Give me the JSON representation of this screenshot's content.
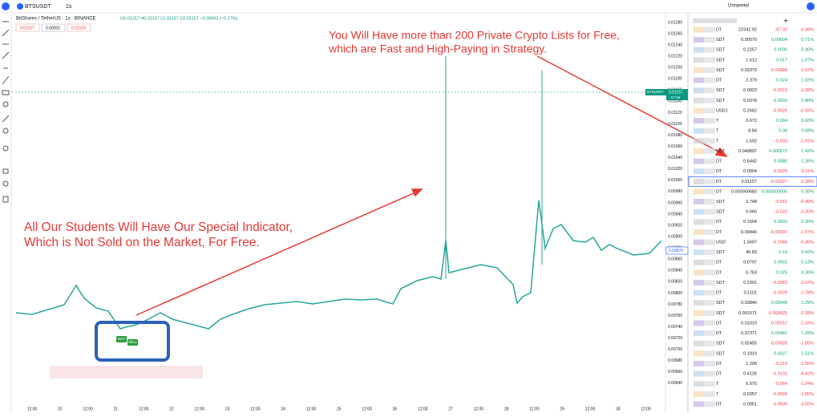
{
  "topbar": {
    "symbol": "BTSUSDT",
    "interval": "1s",
    "layout": "Unnamed"
  },
  "legend": {
    "title": "BitShares / TetherUS · 1s · BINANCE",
    "ohlc": "O0.01157 H0.01157 L0.01157 C0.01157 −0.00002 (−0.17%)",
    "boxes": [
      "0.01157",
      "0.00002",
      "0.01159"
    ]
  },
  "price_axis": [
    "0.01280",
    "0.01260",
    "0.01240",
    "0.01220",
    "0.01200",
    "0.01180",
    "0.01160",
    "0.01140",
    "0.01120",
    "0.01100",
    "0.01080",
    "0.01060",
    "0.01040",
    "0.01020",
    "0.01000",
    "0.00980",
    "0.00960",
    "0.00940",
    "0.00920",
    "0.00900",
    "0.00880",
    "0.00860",
    "0.00840",
    "0.00820",
    "0.00800",
    "0.00780",
    "0.00760",
    "0.00740",
    "0.00720",
    "0.00700",
    "0.00680",
    "0.00660",
    "0.00640"
  ],
  "price_tag": {
    "symbol": "BTSUSDT",
    "price": "0.01157",
    "timer": "57:46"
  },
  "cursor_tag": "0.00876",
  "time_axis": [
    "12:00",
    "20",
    "12:00",
    "21",
    "12:00",
    "22",
    "12:00",
    "23",
    "12:00",
    "24",
    "12:00",
    "25",
    "12:00",
    "26",
    "12:00",
    "27",
    "12:00",
    "28",
    "12:00",
    "29",
    "12:00",
    "30",
    "12:00"
  ],
  "signals": [
    "BUY",
    "SELL"
  ],
  "annotations": {
    "top": [
      "You Will Have more than 200 Private Crypto Lists for Free,",
      "which are Fast and High-Paying in Strategy."
    ],
    "left": [
      "All Our Students Will Have Our Special Indicator,",
      "Which is Not Sold on the Market, For Free."
    ]
  },
  "watchlist": {
    "rows": [
      [
        "DT",
        "22342.92",
        "-87.32",
        "-0.39%"
      ],
      [
        "SDT",
        "0.00570",
        "0.00004",
        "0.71%"
      ],
      [
        "SDT",
        "0.2257",
        "0.0000",
        "0.00%"
      ],
      [
        "SDT",
        "1.612",
        "0.017",
        "1.07%"
      ],
      [
        "SDT",
        "0.03379",
        "-0.00089",
        "-2.57%"
      ],
      [
        "DT",
        "2.379",
        "0.024",
        "1.02%"
      ],
      [
        "SDT",
        "0.0923",
        "-0.0013",
        "-1.39%"
      ],
      [
        "SDT",
        "0.0378",
        "0.0003",
        "0.80%"
      ],
      [
        "USD1",
        "0.2662",
        "-0.0025",
        "-0.93%"
      ],
      [
        "T",
        "0.672",
        "0.004",
        "0.60%"
      ],
      [
        "T",
        "8.84",
        "0.06",
        "0.68%"
      ],
      [
        "T",
        "1.692",
        "-0.033",
        "-1.91%"
      ],
      [
        "SDT",
        "0.040897",
        "0.000572",
        "1.42%"
      ],
      [
        "DT",
        "0.6442",
        "0.0080",
        "1.26%"
      ],
      [
        "DT",
        "0.0904",
        "-0.0029",
        "-3.11%"
      ],
      [
        "DT",
        "0.01157",
        "-0.00027",
        "-2.28%"
      ],
      [
        "DT",
        "0.000000683",
        "0.000000000",
        "0.00%"
      ],
      [
        "SDT",
        "3.748",
        "-0.015",
        "-0.40%"
      ],
      [
        "SDT",
        "0.666",
        "-0.022",
        "-3.20%"
      ],
      [
        "DT",
        "0.1504",
        "0.0003",
        "0.20%"
      ],
      [
        "DT",
        "0.00440",
        "-0.00007",
        "-1.57%"
      ],
      [
        "USD'",
        "1.5697",
        "-0.1066",
        "-6.36%"
      ],
      [
        "SDT",
        "45.83",
        "0.19",
        "0.42%"
      ],
      [
        "DT",
        "0.0797",
        "0.0001",
        "0.13%"
      ],
      [
        "DT",
        "0.763",
        "0.025",
        "3.36%"
      ],
      [
        "SDT",
        "0.2391",
        "-0.0063",
        "-2.57%"
      ],
      [
        "DT",
        "0.1101",
        "-0.0020",
        "-1.78%"
      ],
      [
        "SDT",
        "0.03840",
        "0.00049",
        "1.29%"
      ],
      [
        "SDT",
        "0.001071",
        "-0.000025",
        "-2.28%"
      ],
      [
        "DT",
        "0.01019",
        "-0.00012",
        "-1.16%"
      ],
      [
        "DT",
        "0.37371",
        "0.00461",
        "1.25%"
      ],
      [
        "SDT",
        "0.02455",
        "-0.00026",
        "-1.05%"
      ],
      [
        "SDT",
        "0.1819",
        "0.0027",
        "1.51%"
      ],
      [
        "DT",
        "1.206",
        "-0.019",
        "-1.55%"
      ],
      [
        "DT",
        "0.4126",
        "-0.0191",
        "-4.42%"
      ],
      [
        "T",
        "6.075",
        "-0.064",
        "-1.04%"
      ],
      [
        "T",
        "0.0357",
        "-0.0006",
        "-1.65%"
      ],
      [
        "DT",
        "0.0951",
        "-0.0035",
        "-3.55%"
      ]
    ]
  }
}
